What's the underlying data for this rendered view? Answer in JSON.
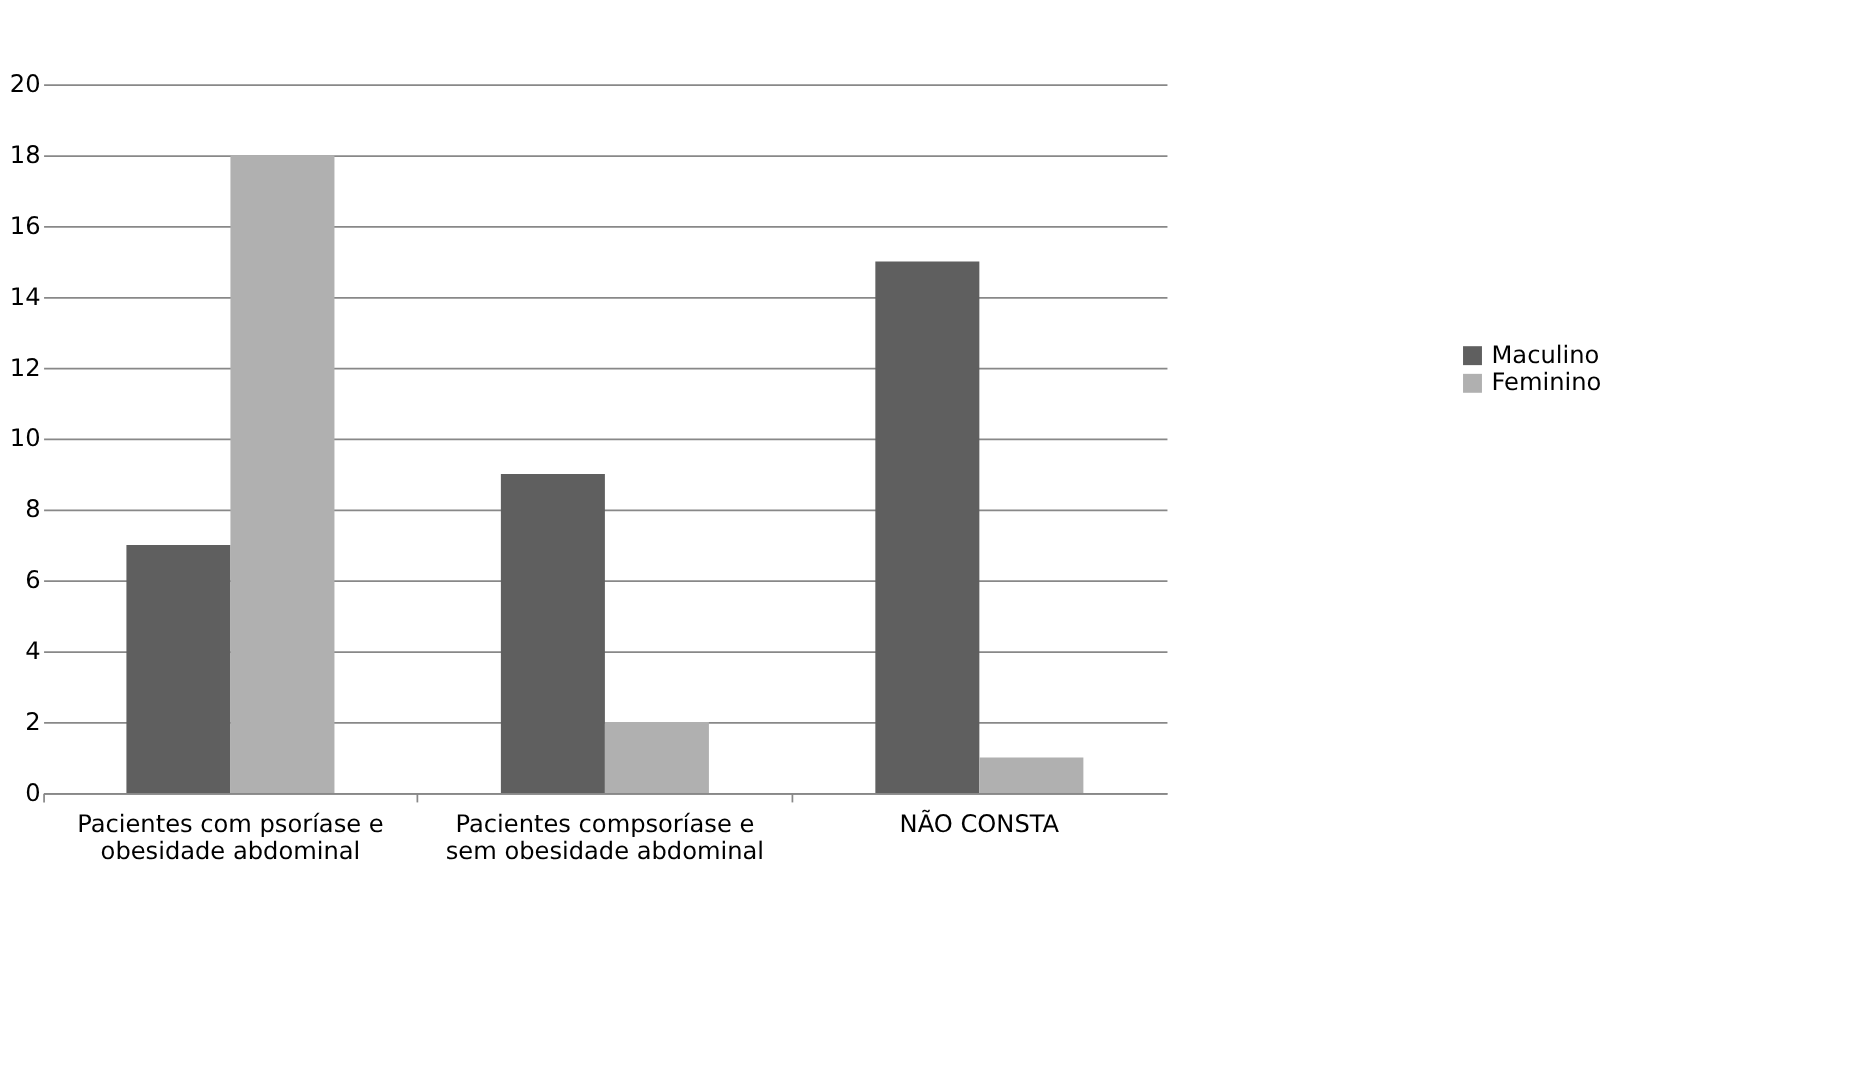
{
  "chart_data": {
    "type": "bar",
    "categories": [
      "Pacientes com psoríase e\nobesidade abdominal",
      "Pacientes compsoríase e\nsem obesidade abdominal",
      "NÃO CONSTA"
    ],
    "series": [
      {
        "name": "Maculino",
        "color": "#5f5f5f",
        "values": [
          7,
          9,
          15
        ]
      },
      {
        "name": "Feminino",
        "color": "#b0b0b0",
        "values": [
          18,
          2,
          1
        ]
      }
    ],
    "ylim": [
      0,
      20
    ],
    "yticks": [
      0,
      2,
      4,
      6,
      8,
      10,
      12,
      14,
      16,
      18,
      20
    ],
    "grid": "y",
    "legend": "right"
  }
}
